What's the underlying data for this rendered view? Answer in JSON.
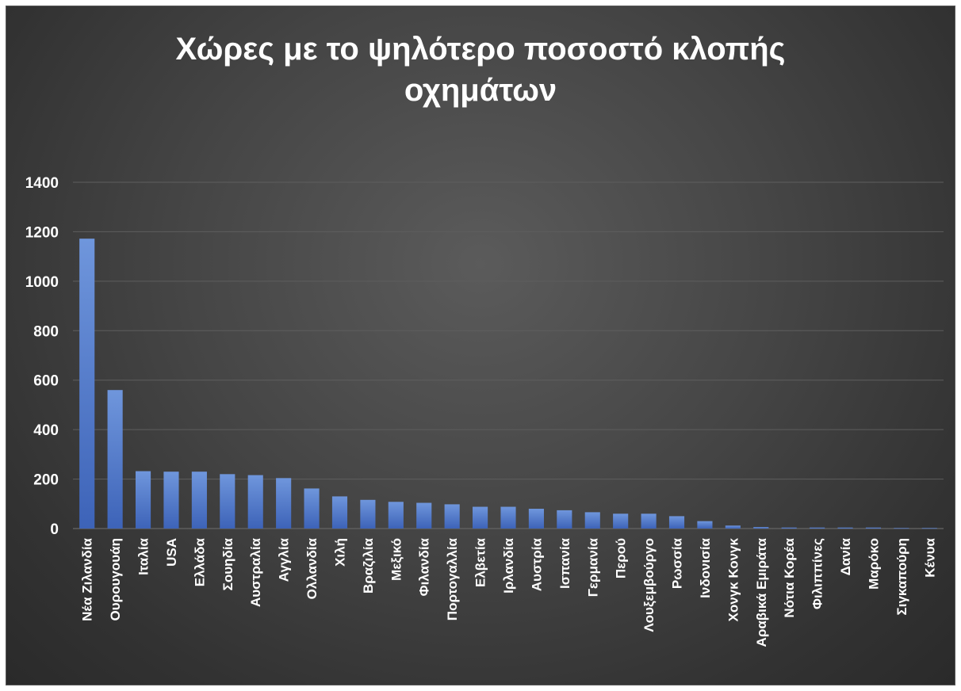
{
  "chart_data": {
    "type": "bar",
    "title_lines": [
      "Χώρες με το ψηλότερο ποσοστό κλοπής",
      "οχημάτων"
    ],
    "xlabel": "",
    "ylabel": "",
    "ylim": [
      0,
      1400
    ],
    "yticks": [
      0,
      200,
      400,
      600,
      800,
      1000,
      1200,
      1400
    ],
    "grid": true,
    "legend": "none",
    "categories": [
      "Νέα Ζιλανδία",
      "Ουρουγουάη",
      "Ιταλία",
      "USA",
      "Ελλάδα",
      "Σουηδία",
      "Αυστραλία",
      "Αγγλία",
      "Ολλανδία",
      "Χιλή",
      "Βραζιλία",
      "Μεξικό",
      "Φιλανδία",
      "Πορτογαλλία",
      "Ελβετία",
      "Ιρλανδία",
      "Αυστρία",
      "Ισπανία",
      "Γερμανία",
      "Περού",
      "Λουξεμβούργο",
      "Ρωσσία",
      "Ινδονισία",
      "Χονγκ Κονγκ",
      "Αραβικά Εμιράτα",
      "Νότια Κορέα",
      "Φιλιππίνες",
      "Δανία",
      "Μαρόκο",
      "Σιγκαπούρη",
      "Κένυα"
    ],
    "values": [
      1172,
      560,
      232,
      230,
      230,
      220,
      216,
      204,
      162,
      130,
      116,
      108,
      104,
      98,
      88,
      88,
      80,
      74,
      66,
      60,
      60,
      50,
      30,
      12,
      6,
      4,
      4,
      4,
      4,
      2,
      2
    ],
    "colors": {
      "bar_top": "#6f96dc",
      "bar_bottom": "#3d63b8",
      "grid": "#5e5e5e",
      "text": "#ffffff"
    }
  }
}
